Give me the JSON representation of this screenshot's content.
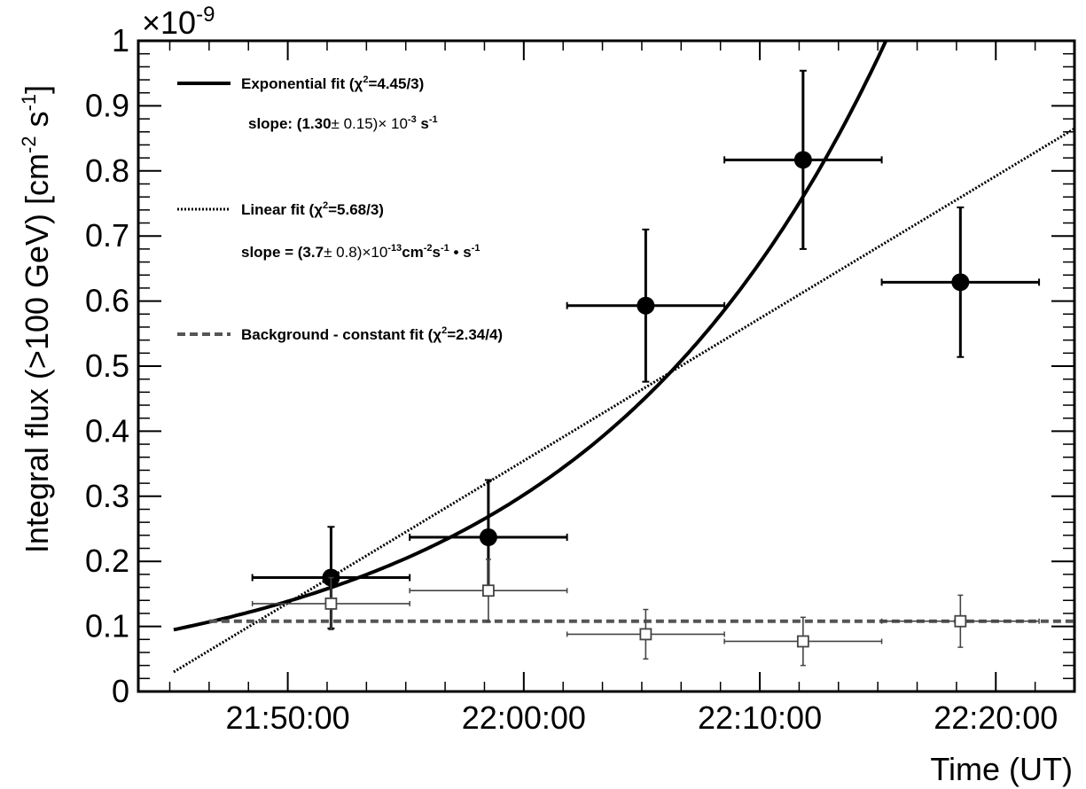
{
  "chart_data": {
    "type": "scatter",
    "xlabel": "Time (UT)",
    "ylabel_main": "Integral flux (>100 GeV) [cm",
    "ylabel_exp1": "-2",
    "ylabel_mid": " s",
    "ylabel_exp2": "-1",
    "ylabel_end": "]",
    "y_multiplier_base": "×10",
    "y_multiplier_exp": "-9",
    "xlim": [
      "21:43:40",
      "22:23:20"
    ],
    "ylim": [
      0,
      1
    ],
    "x_ticks": [
      "21:50:00",
      "22:00:00",
      "22:10:00",
      "22:20:00"
    ],
    "y_ticks": [
      "0",
      "0.1",
      "0.2",
      "0.3",
      "0.4",
      "0.5",
      "0.6",
      "0.7",
      "0.8",
      "0.9",
      "1"
    ],
    "y_tick_values": [
      0,
      0.1,
      0.2,
      0.3,
      0.4,
      0.5,
      0.6,
      0.7,
      0.8,
      0.9,
      1.0
    ],
    "grid": false,
    "legend_position": "top-left",
    "series": [
      {
        "role": "signal",
        "marker": "filled-circle",
        "color": "#000000",
        "points": [
          {
            "x": "21:51:50",
            "y": 0.175,
            "x_lo": "21:48:30",
            "x_hi": "21:55:10",
            "y_err": 0.078
          },
          {
            "x": "21:58:30",
            "y": 0.237,
            "x_lo": "21:55:10",
            "x_hi": "22:01:50",
            "y_err": 0.088
          },
          {
            "x": "22:05:10",
            "y": 0.593,
            "x_lo": "22:01:50",
            "x_hi": "22:08:30",
            "y_err": 0.117
          },
          {
            "x": "22:11:50",
            "y": 0.817,
            "x_lo": "22:08:30",
            "x_hi": "22:15:10",
            "y_err": 0.137
          },
          {
            "x": "22:18:30",
            "y": 0.629,
            "x_lo": "22:15:10",
            "x_hi": "22:21:50",
            "y_err": 0.115
          }
        ]
      },
      {
        "role": "background",
        "marker": "open-square",
        "color": "#444444",
        "points": [
          {
            "x": "21:51:50",
            "y": 0.135,
            "x_lo": "21:48:30",
            "x_hi": "21:55:10",
            "y_err": 0.04
          },
          {
            "x": "21:58:30",
            "y": 0.155,
            "x_lo": "21:55:10",
            "x_hi": "22:01:50",
            "y_err": 0.048
          },
          {
            "x": "22:05:10",
            "y": 0.088,
            "x_lo": "22:01:50",
            "x_hi": "22:08:30",
            "y_err": 0.038
          },
          {
            "x": "22:11:50",
            "y": 0.077,
            "x_lo": "22:08:30",
            "x_hi": "22:15:10",
            "y_err": 0.037
          },
          {
            "x": "22:18:30",
            "y": 0.108,
            "x_lo": "22:15:10",
            "x_hi": "22:21:50",
            "y_err": 0.04
          }
        ]
      }
    ],
    "fits": [
      {
        "label": "Exponential fit",
        "chi2": "=4.45/3)",
        "style": "solid",
        "color": "#000000",
        "kind": "exponential",
        "x_start": "21:45:10",
        "x_end": "22:23:20",
        "y_at_start": 0.095,
        "rate_per_s": 0.0013
      },
      {
        "label": "Linear fit",
        "chi2": "=5.68/3)",
        "style": "dotted",
        "color": "#000000",
        "kind": "linear",
        "x_start": "21:45:10",
        "x_end": "22:23:20",
        "y_at_start": 0.03,
        "y_at_end": 0.865
      },
      {
        "label": "Background - constant fit",
        "chi2": "=2.34/4)",
        "style": "dashed",
        "color": "#555555",
        "kind": "constant",
        "x_start": "21:46:40",
        "x_end": "22:23:20",
        "y": 0.108
      }
    ],
    "annotations": {
      "exp_slope_main": "slope: (1.30",
      "exp_slope_pm": "± 0.15)",
      "exp_slope_times": "× 10",
      "exp_slope_exp": "-3",
      "exp_slope_unit": " s",
      "exp_slope_unit_exp": "-1",
      "lin_slope_main": "slope = (3.7",
      "lin_slope_pm": "± 0.8)",
      "lin_slope_times": "×10",
      "lin_slope_exp": "-13",
      "lin_slope_cm": "cm",
      "lin_slope_cm_exp": "-2",
      "lin_slope_s": "s",
      "lin_slope_s_exp": "-1",
      "lin_slope_bullet": " • s",
      "lin_slope_bullet_exp": "-1",
      "chi_symbol": "(χ",
      "chi_exp": "2"
    }
  }
}
